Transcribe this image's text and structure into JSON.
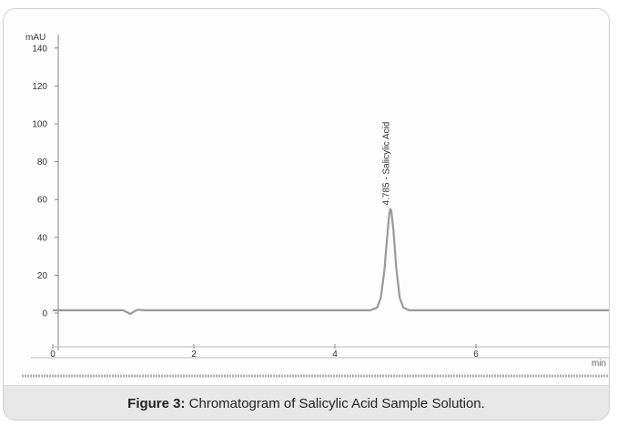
{
  "colors": {
    "axis": "#888888",
    "trace": "#9a9a9a",
    "text": "#333333",
    "caption_bg": "#e8e8e8"
  },
  "caption": {
    "label": "Figure 3:",
    "text": "Chromatogram of Salicylic Acid Sample Solution."
  },
  "chart_data": {
    "type": "line",
    "title": "",
    "xlabel": "min",
    "ylabel": "mAU",
    "xlim": [
      0,
      8
    ],
    "ylim": [
      -8,
      150
    ],
    "x_ticks": [
      0,
      2,
      4,
      6
    ],
    "y_ticks": [
      0,
      20,
      40,
      60,
      80,
      100,
      120,
      140
    ],
    "grid": false,
    "series": [
      {
        "x": [
          0,
          0.5,
          1.0,
          1.05,
          1.1,
          1.15,
          1.2,
          1.3,
          2.0,
          3.0,
          4.0,
          4.5,
          4.6,
          4.65,
          4.7,
          4.74,
          4.77,
          4.785,
          4.8,
          4.83,
          4.87,
          4.92,
          4.97,
          5.05,
          5.2,
          6.0,
          7.0,
          8.0
        ],
        "y": [
          1.5,
          1.5,
          1.5,
          0.5,
          -0.5,
          0.8,
          1.8,
          1.5,
          1.5,
          1.5,
          1.5,
          1.5,
          3,
          8,
          22,
          40,
          52,
          55,
          54,
          44,
          24,
          8,
          3,
          1.5,
          1.5,
          1.5,
          1.5,
          1.5
        ]
      }
    ],
    "annotations": [
      {
        "x": 4.785,
        "y": 57,
        "text": "4.785 - Salicylic Acid"
      }
    ]
  }
}
